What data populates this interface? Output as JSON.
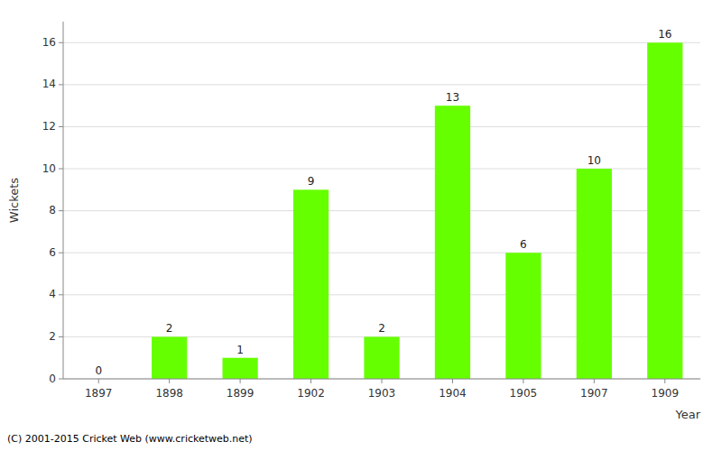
{
  "chart_data": {
    "type": "bar",
    "categories": [
      "1897",
      "1898",
      "1899",
      "1902",
      "1903",
      "1904",
      "1905",
      "1907",
      "1909"
    ],
    "values": [
      0,
      2,
      1,
      9,
      2,
      13,
      6,
      10,
      16
    ],
    "color": "#66ff00",
    "xlabel": "Year",
    "ylabel": "Wickets",
    "ylim": [
      0,
      17
    ],
    "yticks": [
      0,
      2,
      4,
      6,
      8,
      10,
      12,
      14,
      16
    ],
    "grid": true,
    "data_labels": true,
    "annotations": [
      "(C) 2001-2015 Cricket Web (www.cricketweb.net)"
    ]
  }
}
